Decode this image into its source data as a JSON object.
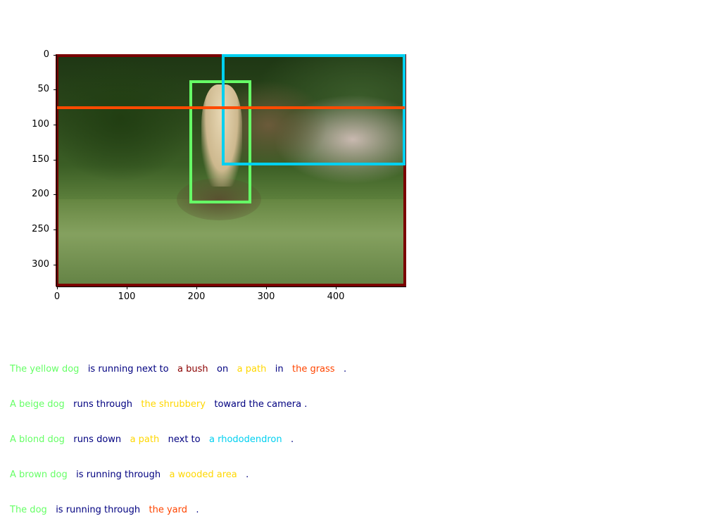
{
  "figure": {
    "axis": {
      "y_ticks": [
        "0",
        "50",
        "100",
        "150",
        "200",
        "250",
        "300"
      ],
      "x_ticks": [
        "0",
        "100",
        "200",
        "300",
        "400"
      ]
    },
    "image_border_color": "#7a0000",
    "boxes": [
      {
        "name": "dog-box",
        "color": "#66ff66"
      },
      {
        "name": "rhododendron-box",
        "color": "#00d0f0"
      },
      {
        "name": "path-line",
        "color": "#ff4a00"
      }
    ]
  },
  "captions": [
    [
      {
        "text": "The yellow dog",
        "color": "#66ff66"
      },
      {
        "text": "is running next to",
        "color": "#000080"
      },
      {
        "text": "a bush",
        "color": "#8b0000"
      },
      {
        "text": "on",
        "color": "#000080"
      },
      {
        "text": "a path",
        "color": "#ffd700"
      },
      {
        "text": "in",
        "color": "#000080"
      },
      {
        "text": "the grass",
        "color": "#ff4500"
      },
      {
        "text": ".",
        "color": "#000080"
      }
    ],
    [
      {
        "text": "A beige dog",
        "color": "#66ff66"
      },
      {
        "text": "runs through",
        "color": "#000080"
      },
      {
        "text": "the shrubbery",
        "color": "#ffd700"
      },
      {
        "text": "toward the camera .",
        "color": "#000080"
      }
    ],
    [
      {
        "text": "A blond dog",
        "color": "#66ff66"
      },
      {
        "text": "runs down",
        "color": "#000080"
      },
      {
        "text": "a path",
        "color": "#ffd700"
      },
      {
        "text": "next to",
        "color": "#000080"
      },
      {
        "text": "a rhododendron",
        "color": "#00d0f0"
      },
      {
        "text": ".",
        "color": "#000080"
      }
    ],
    [
      {
        "text": "A brown dog",
        "color": "#66ff66"
      },
      {
        "text": "is running through",
        "color": "#000080"
      },
      {
        "text": "a wooded area",
        "color": "#ffd700"
      },
      {
        "text": ".",
        "color": "#000080"
      }
    ],
    [
      {
        "text": "The dog",
        "color": "#66ff66"
      },
      {
        "text": "is running through",
        "color": "#000080"
      },
      {
        "text": "the yard",
        "color": "#ff4500"
      },
      {
        "text": ".",
        "color": "#000080"
      }
    ]
  ]
}
